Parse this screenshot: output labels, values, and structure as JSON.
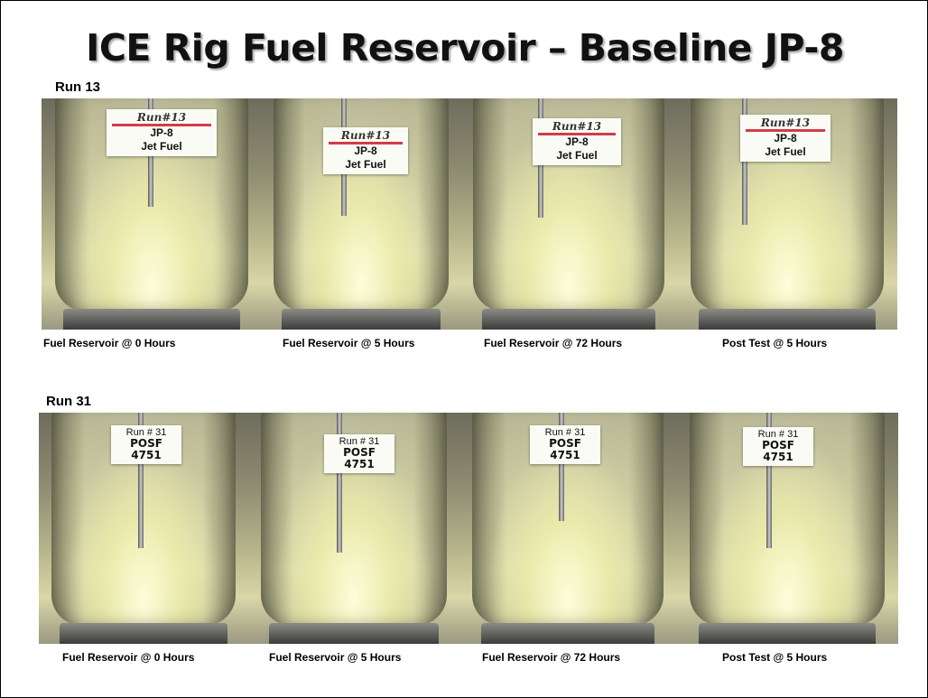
{
  "title": "ICE Rig Fuel Reservoir – Baseline JP-8",
  "runs": [
    {
      "label": "Run 13",
      "tag_handwritten": "Run#13",
      "tag_lines": [
        "JP-8",
        "Jet Fuel"
      ],
      "captions": [
        "Fuel Reservoir @ 0 Hours",
        "Fuel Reservoir @ 5 Hours",
        "Fuel Reservoir @ 72 Hours",
        "Post Test  @ 5 Hours"
      ]
    },
    {
      "label": "Run 31",
      "tag_printed": "Run # 31",
      "tag_bold": "POSF 4751",
      "captions": [
        "Fuel Reservoir @ 0 Hours",
        "Fuel Reservoir @ 5 Hours",
        "Fuel Reservoir @ 72 Hours",
        "Post Test  @ 5 Hours"
      ]
    }
  ]
}
